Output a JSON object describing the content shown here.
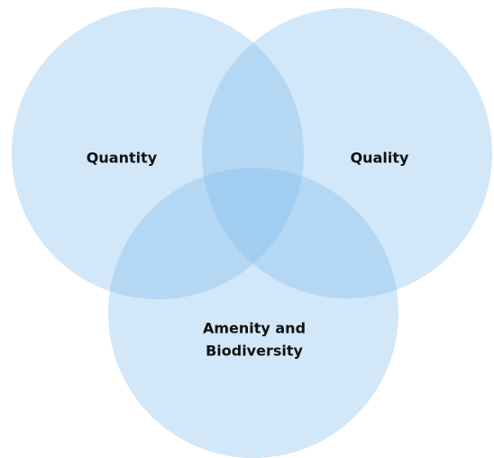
{
  "sets": [
    {
      "label_lines": [
        "Quantity"
      ]
    },
    {
      "label_lines": [
        "Quality"
      ]
    },
    {
      "label_lines": [
        "Amenity and",
        "Biodiversity"
      ]
    }
  ]
}
